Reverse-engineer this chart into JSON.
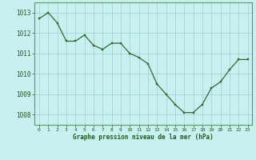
{
  "x": [
    0,
    1,
    2,
    3,
    4,
    5,
    6,
    7,
    8,
    9,
    10,
    11,
    12,
    13,
    14,
    15,
    16,
    17,
    18,
    19,
    20,
    21,
    22,
    23
  ],
  "y": [
    1012.7,
    1013.0,
    1012.5,
    1011.6,
    1011.6,
    1011.9,
    1011.4,
    1011.2,
    1011.5,
    1011.5,
    1011.0,
    1010.8,
    1010.5,
    1009.5,
    1009.0,
    1008.5,
    1008.1,
    1008.1,
    1008.5,
    1009.3,
    1009.6,
    1010.2,
    1010.7,
    1010.7
  ],
  "line_color": "#2d6a2d",
  "marker_color": "#2d6a2d",
  "bg_color": "#c8f0f0",
  "grid_color": "#a8d8d8",
  "axis_label_color": "#1a5c1a",
  "title": "Graphe pression niveau de la mer (hPa)",
  "ylim": [
    1007.5,
    1013.5
  ],
  "yticks": [
    1008,
    1009,
    1010,
    1011,
    1012,
    1013
  ],
  "xlim": [
    -0.5,
    23.5
  ],
  "xticks": [
    0,
    1,
    2,
    3,
    4,
    5,
    6,
    7,
    8,
    9,
    10,
    11,
    12,
    13,
    14,
    15,
    16,
    17,
    18,
    19,
    20,
    21,
    22,
    23
  ]
}
